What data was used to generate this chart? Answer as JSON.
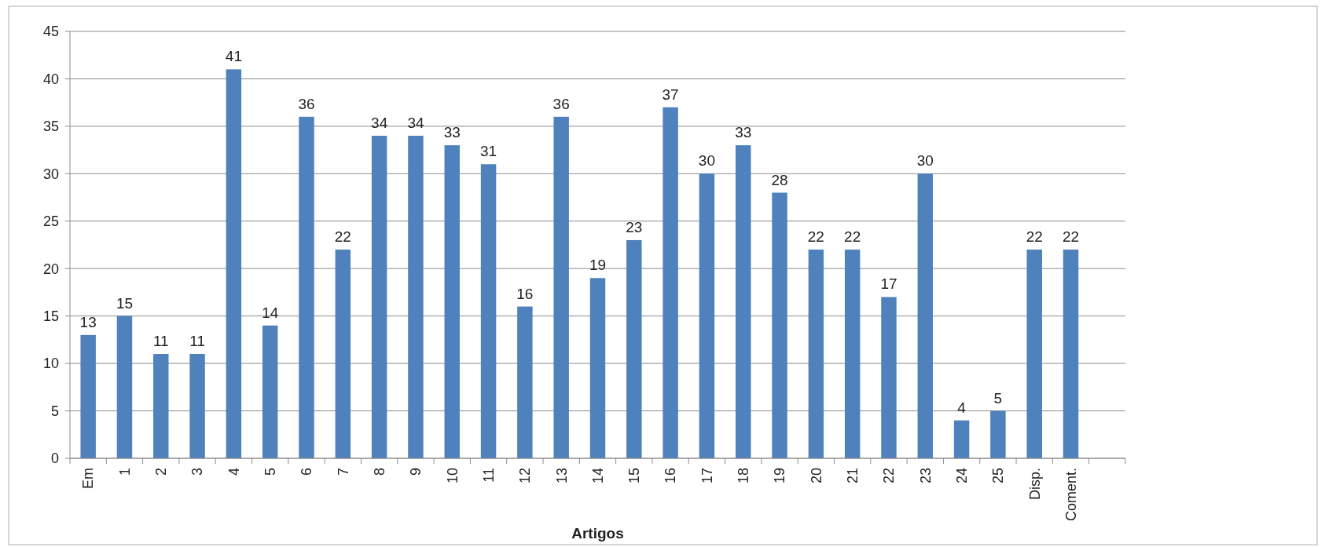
{
  "chart_data": {
    "type": "bar",
    "xlabel": "Artigos",
    "categories": [
      "Em",
      "1",
      "2",
      "3",
      "4",
      "5",
      "6",
      "7",
      "8",
      "9",
      "10",
      "11",
      "12",
      "13",
      "14",
      "15",
      "16",
      "17",
      "18",
      "19",
      "20",
      "21",
      "22",
      "23",
      "24",
      "25",
      "Disp.",
      "Coment.",
      null
    ],
    "values": [
      13,
      15,
      11,
      11,
      41,
      14,
      36,
      22,
      34,
      34,
      33,
      31,
      16,
      36,
      19,
      23,
      37,
      30,
      33,
      28,
      22,
      22,
      17,
      30,
      4,
      5,
      22,
      22,
      null
    ],
    "color": "#4f81bd",
    "ylim": [
      0,
      45
    ],
    "yticks": [
      0,
      5,
      10,
      15,
      20,
      25,
      30,
      35,
      40,
      45
    ],
    "grid": "y",
    "data_labels": true
  }
}
